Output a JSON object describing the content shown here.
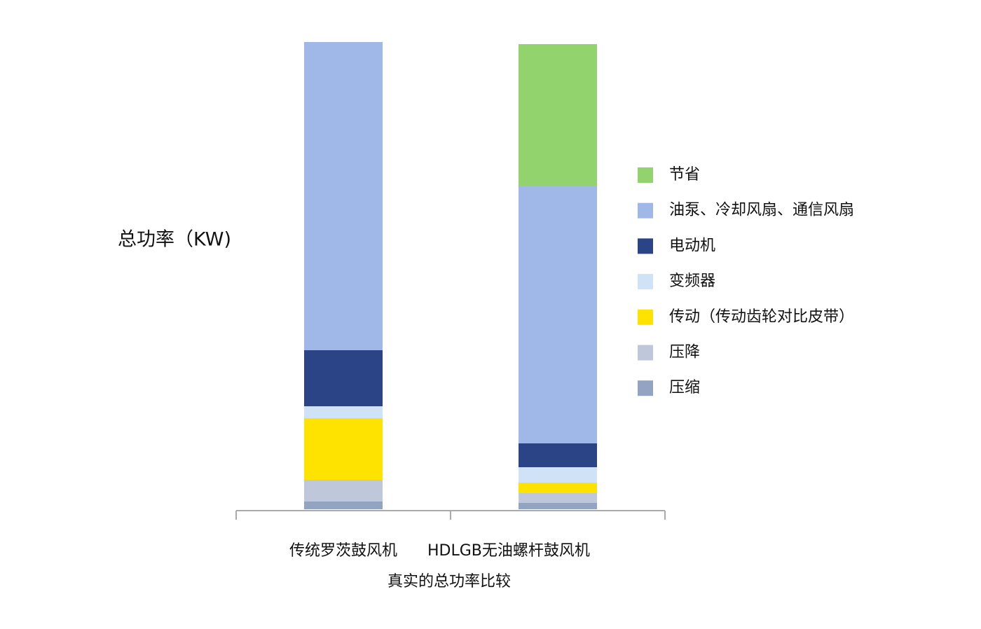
{
  "chart_data": {
    "type": "stacked_bar",
    "y_label": "总功率（KW)",
    "x_label": "真实的总功率比较",
    "categories": [
      "传统罗茨鼓风机",
      "HDLGB无油螺杆鼓风机"
    ],
    "ylim": [
      0,
      700
    ],
    "series": [
      {
        "name": "压缩",
        "color": "#93a3c2",
        "values": [
          11,
          9
        ]
      },
      {
        "name": "压降",
        "color": "#bfc8db",
        "values": [
          31,
          14
        ]
      },
      {
        "name": "传动（传动齿轮对比皮带）",
        "color": "#ffe300",
        "values": [
          88,
          15
        ]
      },
      {
        "name": "变频器",
        "color": "#d0e2f5",
        "values": [
          17,
          22
        ]
      },
      {
        "name": "电动机",
        "color": "#2a4486",
        "values": [
          80,
          34
        ]
      },
      {
        "name": "油泵、冷却风扇、通信风扇",
        "color": "#a0b8e8",
        "values": [
          440,
          368
        ]
      },
      {
        "name": "节省",
        "color": "#92d36e",
        "values": [
          0,
          202
        ]
      }
    ]
  }
}
